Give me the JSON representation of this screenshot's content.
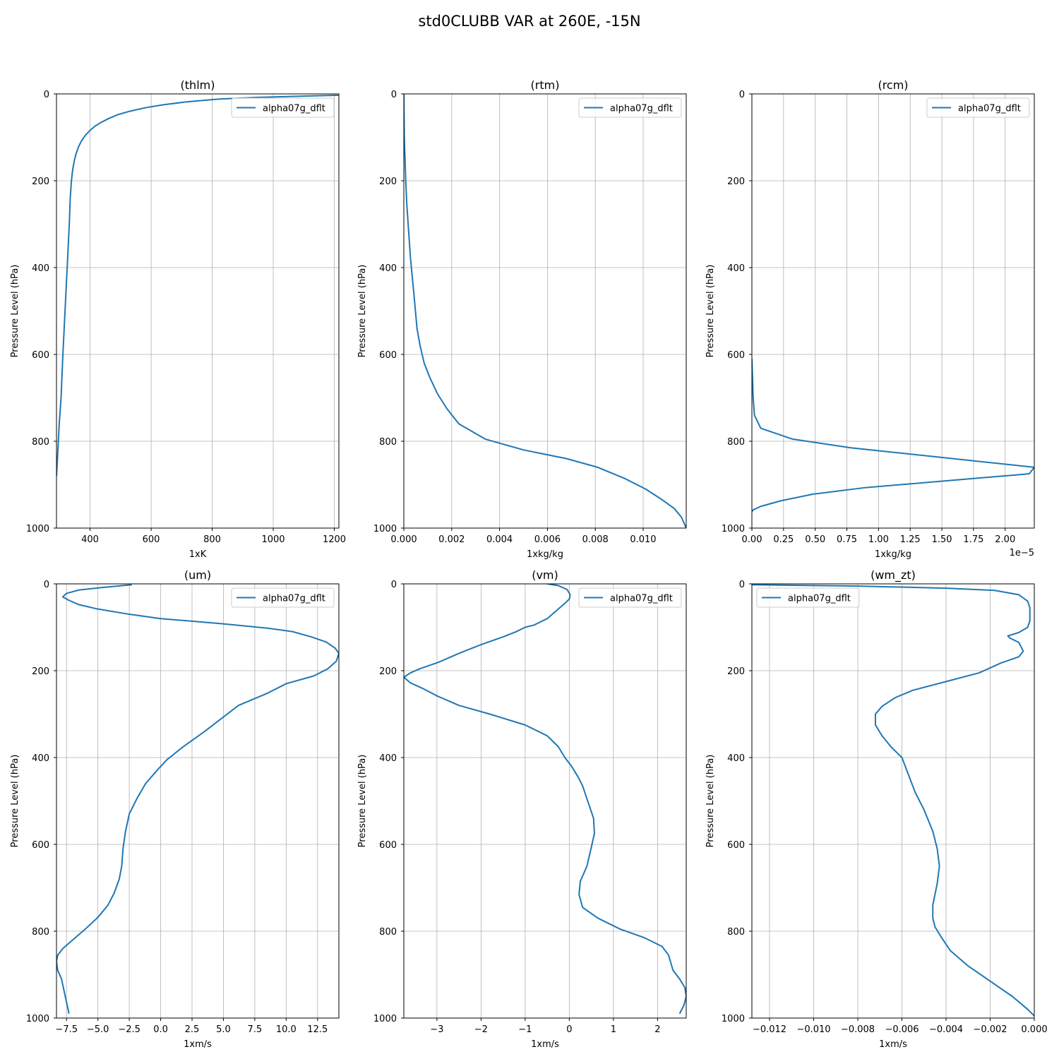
{
  "figure_title": "std0CLUBB VAR at 260E, -15N",
  "colors": {
    "series": "#1f77b4",
    "grid": "#b0b0b0"
  },
  "chart_data": [
    {
      "type": "line",
      "title": "(thlm)",
      "xlabel": "1xK",
      "ylabel": "Pressure Level (hPa)",
      "xlim": [
        290,
        1215
      ],
      "ylim": [
        1000,
        0
      ],
      "x_ticks": [
        400,
        600,
        800,
        1000,
        1200
      ],
      "x_tick_labels": [
        "400",
        "600",
        "800",
        "1000",
        "1200"
      ],
      "y_ticks": [
        0,
        200,
        400,
        600,
        800,
        1000
      ],
      "y_tick_labels": [
        "0",
        "200",
        "400",
        "600",
        "800",
        "1000"
      ],
      "x_offset_label": "",
      "grid": true,
      "legend_position": "upper right",
      "series": [
        {
          "name": "alpha07g_dflt",
          "x": [
            1215,
            1100,
            950,
            820,
            720,
            640,
            580,
            530,
            490,
            460,
            435,
            415,
            400,
            385,
            372,
            362,
            354,
            348,
            343,
            339,
            335,
            332,
            325,
            318,
            311,
            305,
            299,
            294,
            290
          ],
          "y": [
            3,
            5,
            8,
            12,
            18,
            25,
            32,
            40,
            48,
            57,
            66,
            75,
            84,
            95,
            108,
            122,
            138,
            155,
            175,
            200,
            240,
            300,
            400,
            500,
            600,
            700,
            760,
            830,
            880
          ]
        }
      ]
    },
    {
      "type": "line",
      "title": "(rtm)",
      "xlabel": "1xkg/kg",
      "ylabel": "Pressure Level (hPa)",
      "xlim": [
        0,
        0.0118
      ],
      "ylim": [
        1000,
        0
      ],
      "x_ticks": [
        0,
        0.002,
        0.004,
        0.006,
        0.008,
        0.01
      ],
      "x_tick_labels": [
        "0.000",
        "0.002",
        "0.004",
        "0.006",
        "0.008",
        "0.010"
      ],
      "y_ticks": [
        0,
        200,
        400,
        600,
        800,
        1000
      ],
      "y_tick_labels": [
        "0",
        "200",
        "400",
        "600",
        "800",
        "1000"
      ],
      "x_offset_label": "",
      "grid": true,
      "legend_position": "upper right",
      "series": [
        {
          "name": "alpha07g_dflt",
          "x": [
            0,
            2e-05,
            5e-05,
            8e-05,
            0.00012,
            0.00018,
            0.00028,
            0.00042,
            0.00055,
            0.00068,
            0.00085,
            0.0011,
            0.0014,
            0.0018,
            0.0023,
            0.0034,
            0.005,
            0.0068,
            0.0081,
            0.0092,
            0.0101,
            0.0108,
            0.0113,
            0.0116,
            0.0118
          ],
          "y": [
            0,
            100,
            150,
            200,
            250,
            300,
            380,
            460,
            540,
            580,
            620,
            655,
            690,
            725,
            760,
            795,
            820,
            840,
            860,
            885,
            910,
            935,
            955,
            975,
            1000
          ]
        }
      ]
    },
    {
      "type": "line",
      "title": "(rcm)",
      "xlabel": "1xkg/kg",
      "ylabel": "Pressure Level (hPa)",
      "xlim": [
        0,
        2.23e-05
      ],
      "ylim": [
        1000,
        0
      ],
      "x_ticks": [
        0,
        2.5e-06,
        5e-06,
        7.5e-06,
        1e-05,
        1.25e-05,
        1.5e-05,
        1.75e-05,
        2e-05
      ],
      "x_tick_labels": [
        "0.00",
        "0.25",
        "0.50",
        "0.75",
        "1.00",
        "1.25",
        "1.50",
        "1.75",
        "2.00"
      ],
      "y_ticks": [
        0,
        200,
        400,
        600,
        800,
        1000
      ],
      "y_tick_labels": [
        "0",
        "200",
        "400",
        "600",
        "800",
        "1000"
      ],
      "x_offset_label": "1e−5",
      "grid": true,
      "legend_position": "upper right",
      "series": [
        {
          "name": "alpha07g_dflt",
          "x": [
            0,
            1e-07,
            2e-07,
            7e-07,
            3.2e-06,
            7.8e-06,
            2.23e-05,
            2.19e-05,
            8.9e-06,
            4.8e-06,
            2.3e-06,
            7e-07,
            1e-07,
            0
          ],
          "y": [
            610,
            700,
            740,
            770,
            795,
            815,
            860,
            875,
            907,
            922,
            937,
            950,
            958,
            962
          ]
        }
      ]
    },
    {
      "type": "line",
      "title": "(um)",
      "xlabel": "1xm/s",
      "ylabel": "Pressure Level (hPa)",
      "xlim": [
        -8.3,
        14.2
      ],
      "ylim": [
        1000,
        0
      ],
      "x_ticks": [
        -7.5,
        -5.0,
        -2.5,
        0.0,
        2.5,
        5.0,
        7.5,
        10.0,
        12.5
      ],
      "x_tick_labels": [
        "−7.5",
        "−5.0",
        "−2.5",
        "0.0",
        "2.5",
        "5.0",
        "7.5",
        "10.0",
        "12.5"
      ],
      "y_ticks": [
        0,
        200,
        400,
        600,
        800,
        1000
      ],
      "y_tick_labels": [
        "0",
        "200",
        "400",
        "600",
        "800",
        "1000"
      ],
      "x_offset_label": "",
      "grid": true,
      "legend_position": "upper right",
      "series": [
        {
          "name": "alpha07g_dflt",
          "x": [
            -2.3,
            -4.5,
            -6.5,
            -7.5,
            -7.8,
            -7.3,
            -6.5,
            -5.0,
            -2.5,
            0.0,
            2.5,
            5.0,
            8.5,
            10.5,
            12.0,
            13.2,
            13.9,
            14.2,
            14.0,
            13.3,
            12.2,
            10.0,
            8.5,
            6.2,
            3.5,
            1.8,
            0.5,
            -0.3,
            -1.2,
            -1.9,
            -2.5,
            -2.8,
            -3.0,
            -3.1,
            -3.3,
            -3.7,
            -4.2,
            -5.0,
            -6.0,
            -7.0,
            -7.8,
            -8.2,
            -8.3,
            -8.2,
            -7.9,
            -7.6,
            -7.3
          ],
          "y": [
            2,
            8,
            14,
            22,
            30,
            38,
            48,
            58,
            70,
            80,
            86,
            92,
            102,
            110,
            122,
            134,
            148,
            160,
            178,
            196,
            212,
            230,
            252,
            280,
            340,
            375,
            405,
            430,
            460,
            495,
            530,
            570,
            610,
            650,
            680,
            712,
            740,
            768,
            795,
            820,
            840,
            855,
            870,
            890,
            910,
            950,
            990
          ]
        }
      ]
    },
    {
      "type": "line",
      "title": "(vm)",
      "xlabel": "1xm/s",
      "ylabel": "Pressure Level (hPa)",
      "xlim": [
        -3.75,
        2.65
      ],
      "ylim": [
        1000,
        0
      ],
      "x_ticks": [
        -3,
        -2,
        -1,
        0,
        1,
        2
      ],
      "x_tick_labels": [
        "−3",
        "−2",
        "−1",
        "0",
        "1",
        "2"
      ],
      "y_ticks": [
        0,
        200,
        400,
        600,
        800,
        1000
      ],
      "y_tick_labels": [
        "0",
        "200",
        "400",
        "600",
        "800",
        "1000"
      ],
      "x_offset_label": "",
      "grid": true,
      "legend_position": "upper right",
      "series": [
        {
          "name": "alpha07g_dflt",
          "x": [
            -0.5,
            -0.25,
            -0.05,
            0.02,
            0.0,
            -0.1,
            -0.25,
            -0.5,
            -0.8,
            -1.0,
            -1.2,
            -1.5,
            -2.0,
            -2.5,
            -2.95,
            -3.4,
            -3.6,
            -3.75,
            -3.6,
            -3.3,
            -3.0,
            -2.5,
            -1.8,
            -1.0,
            -0.5,
            -0.25,
            -0.1,
            0.05,
            0.2,
            0.3,
            0.4,
            0.55,
            0.57,
            0.48,
            0.4,
            0.25,
            0.22,
            0.3,
            0.65,
            1.15,
            1.7,
            2.1,
            2.25,
            2.35,
            2.5,
            2.62,
            2.65,
            2.6,
            2.5
          ],
          "y": [
            0,
            4,
            13,
            25,
            35,
            45,
            58,
            80,
            95,
            100,
            110,
            122,
            140,
            160,
            180,
            196,
            205,
            215,
            228,
            242,
            258,
            280,
            300,
            325,
            350,
            375,
            400,
            420,
            445,
            465,
            495,
            540,
            575,
            615,
            650,
            685,
            715,
            745,
            770,
            795,
            815,
            835,
            855,
            890,
            910,
            930,
            950,
            970,
            990
          ]
        }
      ]
    },
    {
      "type": "line",
      "title": "(wm_zt)",
      "xlabel": "1xm/s",
      "ylabel": "Pressure Level (hPa)",
      "xlim": [
        -0.0128,
        0.0
      ],
      "ylim": [
        1000,
        0
      ],
      "x_ticks": [
        -0.012,
        -0.01,
        -0.008,
        -0.006,
        -0.004,
        -0.002,
        0.0
      ],
      "x_tick_labels": [
        "−0.012",
        "−0.010",
        "−0.008",
        "−0.006",
        "−0.004",
        "−0.002",
        "0.000"
      ],
      "y_ticks": [
        0,
        200,
        400,
        600,
        800,
        1000
      ],
      "y_tick_labels": [
        "0",
        "200",
        "400",
        "600",
        "800",
        "1000"
      ],
      "x_offset_label": "",
      "grid": true,
      "legend_position": "upper left",
      "series": [
        {
          "name": "alpha07g_dflt",
          "x": [
            -0.0128,
            -0.008,
            -0.004,
            -0.0018,
            -0.0007,
            -0.0003,
            -0.0002,
            -0.0002,
            -0.0003,
            -0.0007,
            -0.0012,
            -0.0011,
            -0.0007,
            -0.0005,
            -0.0007,
            -0.0015,
            -0.0025,
            -0.004,
            -0.0055,
            -0.0063,
            -0.0069,
            -0.0072,
            -0.0072,
            -0.0069,
            -0.0065,
            -0.006,
            -0.0057,
            -0.0054,
            -0.005,
            -0.0046,
            -0.0044,
            -0.0043,
            -0.0044,
            -0.0046,
            -0.0046,
            -0.0045,
            -0.0042,
            -0.0038,
            -0.003,
            -0.002,
            -0.001,
            -0.0003,
            0.0
          ],
          "y": [
            2,
            5,
            10,
            15,
            25,
            40,
            55,
            85,
            100,
            112,
            120,
            125,
            135,
            155,
            168,
            182,
            205,
            225,
            245,
            262,
            282,
            300,
            325,
            350,
            375,
            400,
            440,
            480,
            520,
            570,
            610,
            650,
            690,
            740,
            770,
            790,
            815,
            845,
            880,
            915,
            950,
            980,
            995
          ]
        }
      ]
    }
  ]
}
